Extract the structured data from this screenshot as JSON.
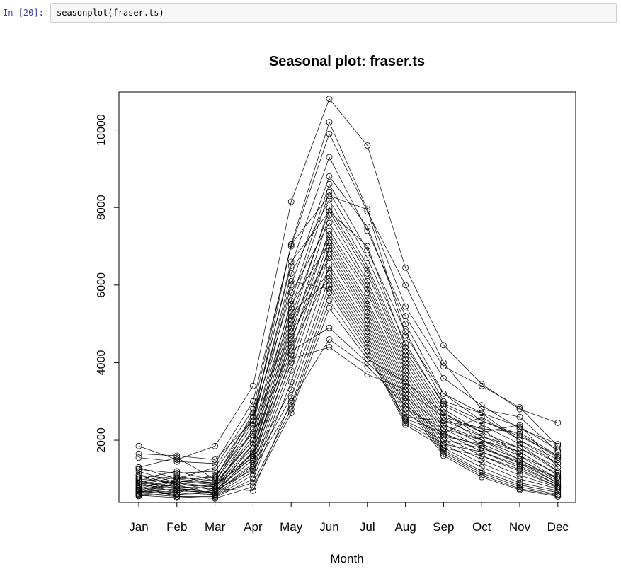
{
  "notebook": {
    "prompt": "In [20]:",
    "code": "seasonplot(fraser.ts)"
  },
  "chart_data": {
    "type": "line",
    "title": "Seasonal plot: fraser.ts",
    "xlabel": "Month",
    "ylabel": "",
    "categories": [
      "Jan",
      "Feb",
      "Mar",
      "Apr",
      "May",
      "Jun",
      "Jul",
      "Aug",
      "Sep",
      "Oct",
      "Nov",
      "Dec"
    ],
    "yticks": [
      2000,
      4000,
      6000,
      8000,
      10000
    ],
    "ylim": [
      450,
      10850
    ],
    "markers": "open-circle",
    "series": [
      {
        "values": [
          1850,
          1500,
          1850,
          3400,
          8150,
          10800,
          9600,
          6450,
          4450,
          3450,
          2800,
          2450
        ]
      },
      {
        "values": [
          1650,
          1600,
          1500,
          2500,
          7050,
          10200,
          7950,
          5450,
          3900,
          3400,
          2850,
          1850
        ]
      },
      {
        "values": [
          1550,
          1450,
          1400,
          3000,
          7000,
          9900,
          7900,
          6000,
          4000,
          2800,
          2600,
          1700
        ]
      },
      {
        "values": [
          1300,
          1550,
          1000,
          2700,
          6500,
          9300,
          7400,
          5200,
          3600,
          2900,
          2300,
          1900
        ]
      },
      {
        "values": [
          1200,
          900,
          1100,
          2200,
          6000,
          8800,
          7500,
          5000,
          3200,
          2500,
          2100,
          1600
        ]
      },
      {
        "values": [
          1100,
          1000,
          900,
          2000,
          5600,
          8600,
          6900,
          4800,
          3000,
          2700,
          2000,
          1500
        ]
      },
      {
        "values": [
          1050,
          850,
          800,
          1900,
          5400,
          8400,
          6700,
          4500,
          2900,
          2400,
          1900,
          1400
        ]
      },
      {
        "values": [
          1000,
          1200,
          950,
          2400,
          6300,
          8200,
          6500,
          4300,
          2800,
          2200,
          2400,
          1300
        ]
      },
      {
        "values": [
          950,
          800,
          750,
          1700,
          5000,
          8000,
          6400,
          4200,
          2700,
          2100,
          1800,
          1200
        ]
      },
      {
        "values": [
          900,
          1100,
          850,
          2100,
          5200,
          7900,
          6300,
          4100,
          2600,
          2000,
          1700,
          1100
        ]
      },
      {
        "values": [
          850,
          750,
          700,
          1500,
          4700,
          7800,
          6100,
          4000,
          2500,
          2300,
          1600,
          1000
        ]
      },
      {
        "values": [
          800,
          950,
          900,
          2600,
          5800,
          7600,
          6000,
          3900,
          2400,
          1900,
          1500,
          950
        ]
      },
      {
        "values": [
          780,
          700,
          650,
          1400,
          4500,
          7400,
          5900,
          3800,
          2300,
          1800,
          1400,
          900
        ]
      },
      {
        "values": [
          750,
          850,
          800,
          1800,
          4900,
          7300,
          5800,
          3700,
          2200,
          1700,
          1300,
          850
        ]
      },
      {
        "values": [
          720,
          650,
          600,
          1300,
          4200,
          7200,
          5600,
          3600,
          2100,
          1600,
          1200,
          800
        ]
      },
      {
        "values": [
          700,
          800,
          750,
          2300,
          5500,
          7100,
          5500,
          3500,
          2000,
          1500,
          1100,
          780
        ]
      },
      {
        "values": [
          680,
          600,
          580,
          1200,
          4000,
          7000,
          5400,
          3400,
          1900,
          1400,
          1000,
          750
        ]
      },
      {
        "values": [
          650,
          750,
          700,
          1600,
          4600,
          6900,
          5300,
          3300,
          1800,
          1300,
          900,
          700
        ]
      },
      {
        "values": [
          620,
          550,
          550,
          1100,
          3800,
          6800,
          5200,
          3200,
          1750,
          1200,
          850,
          650
        ]
      },
      {
        "values": [
          600,
          700,
          650,
          1900,
          5100,
          6700,
          5100,
          3100,
          1700,
          1150,
          800,
          600
        ]
      },
      {
        "values": [
          580,
          520,
          520,
          1000,
          3500,
          6500,
          5000,
          3000,
          1650,
          1100,
          750,
          580
        ]
      },
      {
        "values": [
          560,
          650,
          600,
          1700,
          4800,
          6400,
          4900,
          2900,
          1600,
          1050,
          720,
          550
        ]
      },
      {
        "values": [
          900,
          650,
          850,
          2000,
          4400,
          6300,
          4800,
          2800,
          2300,
          2000,
          1500,
          1000
        ]
      },
      {
        "values": [
          1000,
          900,
          700,
          1500,
          3300,
          6200,
          4700,
          2700,
          2100,
          1900,
          1900,
          1200
        ]
      },
      {
        "values": [
          850,
          1050,
          950,
          2200,
          5300,
          6100,
          4600,
          2600,
          2500,
          2100,
          1700,
          1100
        ]
      },
      {
        "values": [
          950,
          750,
          650,
          1350,
          3100,
          6000,
          4500,
          2500,
          2000,
          1800,
          1450,
          900
        ]
      },
      {
        "values": [
          750,
          1000,
          1050,
          2500,
          6100,
          5900,
          4400,
          2450,
          1900,
          1700,
          1350,
          850
        ]
      },
      {
        "values": [
          700,
          600,
          700,
          1250,
          2900,
          5800,
          4300,
          2400,
          1800,
          1600,
          1250,
          800
        ]
      },
      {
        "values": [
          1100,
          850,
          600,
          900,
          2800,
          5600,
          4200,
          2550,
          2200,
          2600,
          2000,
          1400
        ]
      },
      {
        "values": [
          800,
          550,
          500,
          800,
          2700,
          5400,
          4100,
          3500,
          2700,
          2200,
          1800,
          1300
        ]
      },
      {
        "values": [
          650,
          900,
          800,
          1650,
          4300,
          4900,
          4000,
          3100,
          2400,
          2000,
          1600,
          1150
        ]
      },
      {
        "values": [
          900,
          800,
          750,
          700,
          3000,
          4600,
          3900,
          2900,
          2150,
          1850,
          1400,
          1050
        ]
      },
      {
        "values": [
          700,
          950,
          850,
          1550,
          4100,
          4400,
          3700,
          3300,
          2600,
          2300,
          2200,
          1600
        ]
      },
      {
        "values": [
          1300,
          1000,
          1300,
          2800,
          7050,
          8300,
          7950,
          4700,
          3200,
          2700,
          2350,
          1750
        ]
      },
      {
        "values": [
          1250,
          1150,
          1200,
          2600,
          6600,
          7900,
          7000,
          4400,
          2950,
          2500,
          2150,
          1550
        ]
      }
    ]
  }
}
